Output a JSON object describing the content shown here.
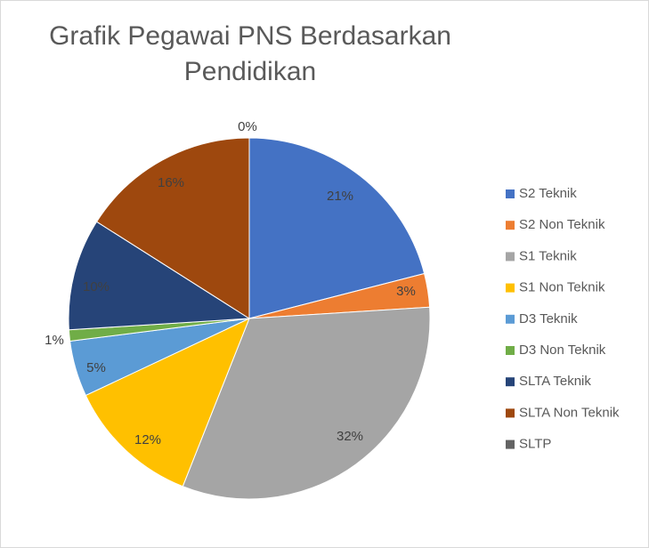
{
  "chart_data": {
    "type": "pie",
    "title": "Grafik Pegawai PNS Berdasarkan Pendidikan",
    "legend_position": "right",
    "categories": [
      "S2 Teknik",
      "S2 Non Teknik",
      "S1 Teknik",
      "S1 Non Teknik",
      "D3 Teknik",
      "D3 Non Teknik",
      "SLTA Teknik",
      "SLTA Non Teknik",
      "SLTP"
    ],
    "values": [
      21,
      3,
      32,
      12,
      5,
      1,
      10,
      16,
      0
    ],
    "labels": [
      "21%",
      "3%",
      "32%",
      "12%",
      "5%",
      "1%",
      "10%",
      "16%",
      "0%"
    ],
    "colors": [
      "#4472c4",
      "#ed7d31",
      "#a5a5a5",
      "#ffc000",
      "#5b9bd5",
      "#70ad47",
      "#264478",
      "#9e480e",
      "#636363"
    ]
  }
}
